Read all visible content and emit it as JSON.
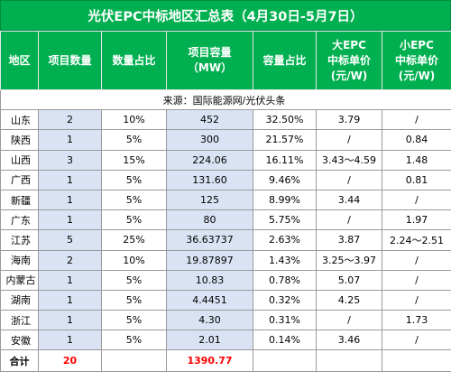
{
  "title": "光伏EPC中标地区汇总表（4月30日-5月7日）",
  "headers": [
    [
      "地区"
    ],
    [
      "项目数量"
    ],
    [
      "数量占比"
    ],
    [
      "项目容量",
      "（MW）"
    ],
    [
      "容量占比"
    ],
    [
      "大EPC",
      "中标单价",
      "(元/W)"
    ],
    [
      "小EPC",
      "中标单价",
      "(元/W)"
    ]
  ],
  "source": "来源：国际能源网/光伏头条",
  "rows": [
    [
      "山东",
      "2",
      "10%",
      "452",
      "32.50%",
      "3.79",
      "/"
    ],
    [
      "陕西",
      "1",
      "5%",
      "300",
      "21.57%",
      "/",
      "0.84"
    ],
    [
      "山西",
      "3",
      "15%",
      "224.06",
      "16.11%",
      "3.43～4.59",
      "1.48"
    ],
    [
      "广西",
      "1",
      "5%",
      "131.60",
      "9.46%",
      "/",
      "0.81"
    ],
    [
      "新疆",
      "1",
      "5%",
      "125",
      "8.99%",
      "3.44",
      "/"
    ],
    [
      "广东",
      "1",
      "5%",
      "80",
      "5.75%",
      "/",
      "1.97"
    ],
    [
      "江苏",
      "5",
      "25%",
      "36.63737",
      "2.63%",
      "3.87",
      "2.24～2.51"
    ],
    [
      "海南",
      "2",
      "10%",
      "19.87897",
      "1.43%",
      "3.25～3.97",
      "/"
    ],
    [
      "内蒙古",
      "1",
      "5%",
      "10.83",
      "0.78%",
      "5.07",
      "/"
    ],
    [
      "湖南",
      "1",
      "5%",
      "4.4451",
      "0.32%",
      "4.25",
      "/"
    ],
    [
      "浙江",
      "1",
      "5%",
      "4.30",
      "0.31%",
      "/",
      "1.73"
    ],
    [
      "安徽",
      "1",
      "5%",
      "2.01",
      "0.14%",
      "3.46",
      "/"
    ]
  ],
  "total": {
    "label": "合计",
    "count": "20",
    "capacity": "1390.77"
  },
  "colors": {
    "header_bg": "#00b050",
    "header_text": "#ffffff",
    "highlight_bg": "#dae3f3",
    "total_text": "#ff0000"
  }
}
